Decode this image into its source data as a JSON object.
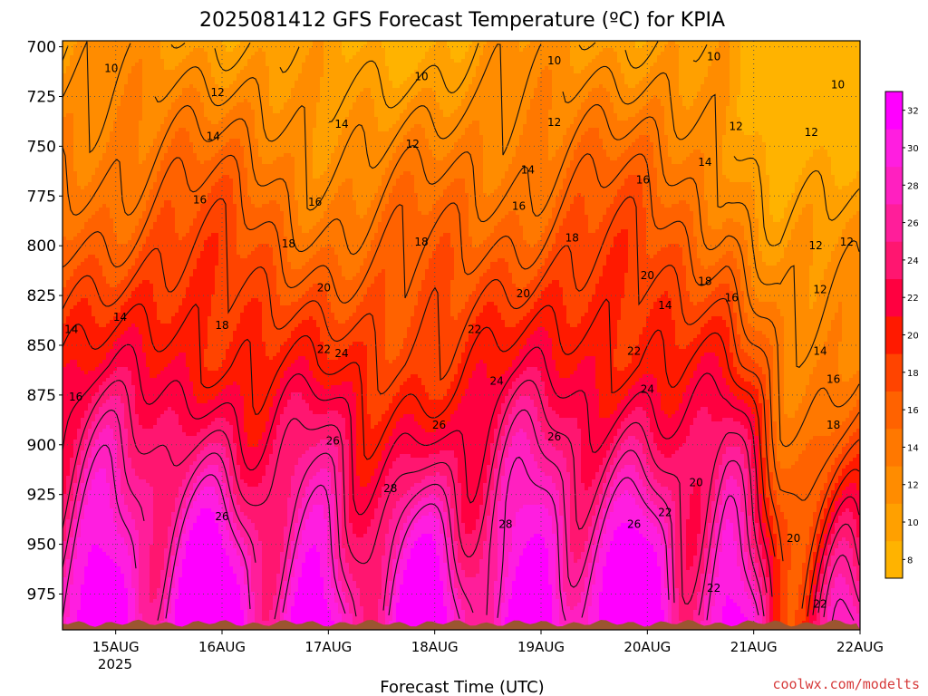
{
  "chart_data": {
    "type": "heatmap",
    "title": "2025081412 GFS Forecast Temperature (ºC) for KPIA",
    "xlabel": "Forecast Time (UTC)",
    "ylabel": "",
    "x_ticks": [
      "15AUG",
      "16AUG",
      "17AUG",
      "18AUG",
      "19AUG",
      "20AUG",
      "21AUG",
      "22AUG"
    ],
    "x_tick_sublabel": "2025",
    "y_ticks": [
      700,
      725,
      750,
      775,
      800,
      825,
      850,
      875,
      900,
      925,
      950,
      975
    ],
    "y_axis": "pressure (hPa), inverted",
    "xlim": [
      "14 AUG 12Z",
      "22 AUG 00Z"
    ],
    "ylim": [
      697,
      993
    ],
    "grid": true,
    "colorbar_levels": [
      8,
      10,
      12,
      14,
      16,
      18,
      20,
      22,
      24,
      26,
      28,
      30,
      32
    ],
    "colorbar_colors": [
      "#ffb300",
      "#ffa000",
      "#ff8c00",
      "#ff7800",
      "#ff6200",
      "#ff4400",
      "#ff1a00",
      "#ff0040",
      "#ff1670",
      "#ff1e9a",
      "#ff20c0",
      "#ff1ee0",
      "#ff00ff"
    ],
    "contour_labels": [
      {
        "text": "10",
        "x": "14 AUG 23Z",
        "p": 711
      },
      {
        "text": "10",
        "x": "17 AUG 21Z",
        "p": 715
      },
      {
        "text": "10",
        "x": "19 AUG 03Z",
        "p": 707
      },
      {
        "text": "10",
        "x": "20 AUG 15Z",
        "p": 705
      },
      {
        "text": "10",
        "x": "21 AUG 19Z",
        "p": 719
      },
      {
        "text": "12",
        "x": "15 AUG 23Z",
        "p": 723
      },
      {
        "text": "12",
        "x": "17 AUG 19Z",
        "p": 749
      },
      {
        "text": "12",
        "x": "19 AUG 03Z",
        "p": 738
      },
      {
        "text": "12",
        "x": "20 AUG 20Z",
        "p": 740
      },
      {
        "text": "12",
        "x": "21 AUG 13Z",
        "p": 743
      },
      {
        "text": "12",
        "x": "21 AUG 14Z",
        "p": 800
      },
      {
        "text": "12",
        "x": "21 AUG 21Z",
        "p": 798
      },
      {
        "text": "12",
        "x": "21 AUG 15Z",
        "p": 822
      },
      {
        "text": "14",
        "x": "15 AUG 22Z",
        "p": 745
      },
      {
        "text": "14",
        "x": "17 AUG 03Z",
        "p": 739
      },
      {
        "text": "14",
        "x": "18 AUG 21Z",
        "p": 762
      },
      {
        "text": "14",
        "x": "20 AUG 13Z",
        "p": 758
      },
      {
        "text": "14",
        "x": "15 AUG 01Z",
        "p": 836
      },
      {
        "text": "14",
        "x": "14 AUG 14Z",
        "p": 842
      },
      {
        "text": "14",
        "x": "20 AUG 04Z",
        "p": 830
      },
      {
        "text": "14",
        "x": "21 AUG 15Z",
        "p": 853
      },
      {
        "text": "16",
        "x": "15 AUG 19Z",
        "p": 777
      },
      {
        "text": "16",
        "x": "16 AUG 21Z",
        "p": 778
      },
      {
        "text": "16",
        "x": "18 AUG 19Z",
        "p": 780
      },
      {
        "text": "16",
        "x": "19 AUG 23Z",
        "p": 767
      },
      {
        "text": "16",
        "x": "20 AUG 19Z",
        "p": 826
      },
      {
        "text": "16",
        "x": "14 AUG 15Z",
        "p": 876
      },
      {
        "text": "16",
        "x": "21 AUG 18Z",
        "p": 867
      },
      {
        "text": "18",
        "x": "16 AUG 15Z",
        "p": 799
      },
      {
        "text": "18",
        "x": "17 AUG 21Z",
        "p": 798
      },
      {
        "text": "18",
        "x": "19 AUG 07Z",
        "p": 796
      },
      {
        "text": "18",
        "x": "16 AUG 00Z",
        "p": 840
      },
      {
        "text": "18",
        "x": "20 AUG 13Z",
        "p": 818
      },
      {
        "text": "18",
        "x": "21 AUG 18Z",
        "p": 890
      },
      {
        "text": "20",
        "x": "16 AUG 23Z",
        "p": 821
      },
      {
        "text": "20",
        "x": "18 AUG 20Z",
        "p": 824
      },
      {
        "text": "20",
        "x": "20 AUG 00Z",
        "p": 815
      },
      {
        "text": "20",
        "x": "20 AUG 11Z",
        "p": 919
      },
      {
        "text": "20",
        "x": "21 AUG 09Z",
        "p": 947
      },
      {
        "text": "22",
        "x": "18 AUG 09Z",
        "p": 842
      },
      {
        "text": "22",
        "x": "16 AUG 23Z",
        "p": 852
      },
      {
        "text": "22",
        "x": "19 AUG 21Z",
        "p": 853
      },
      {
        "text": "22",
        "x": "20 AUG 04Z",
        "p": 934
      },
      {
        "text": "22",
        "x": "20 AUG 15Z",
        "p": 972
      },
      {
        "text": "22",
        "x": "21 AUG 15Z",
        "p": 980
      },
      {
        "text": "24",
        "x": "17 AUG 03Z",
        "p": 854
      },
      {
        "text": "24",
        "x": "18 AUG 14Z",
        "p": 868
      },
      {
        "text": "24",
        "x": "20 AUG 00Z",
        "p": 872
      },
      {
        "text": "26",
        "x": "17 AUG 01Z",
        "p": 898
      },
      {
        "text": "26",
        "x": "18 AUG 01Z",
        "p": 890
      },
      {
        "text": "26",
        "x": "19 AUG 03Z",
        "p": 896
      },
      {
        "text": "26",
        "x": "16 AUG 00Z",
        "p": 936
      },
      {
        "text": "26",
        "x": "19 AUG 21Z",
        "p": 940
      },
      {
        "text": "28",
        "x": "17 AUG 14Z",
        "p": 922
      },
      {
        "text": "28",
        "x": "18 AUG 16Z",
        "p": 940
      }
    ]
  },
  "footer": {
    "credit": "coolwx.com/modelts"
  }
}
